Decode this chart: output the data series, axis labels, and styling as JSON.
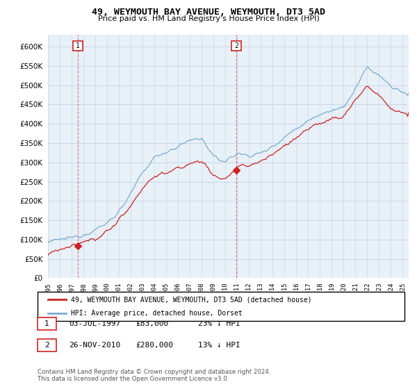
{
  "title": "49, WEYMOUTH BAY AVENUE, WEYMOUTH, DT3 5AD",
  "subtitle": "Price paid vs. HM Land Registry's House Price Index (HPI)",
  "ytick_values": [
    0,
    50000,
    100000,
    150000,
    200000,
    250000,
    300000,
    350000,
    400000,
    450000,
    500000,
    550000,
    600000
  ],
  "ylim": [
    0,
    630000
  ],
  "xlim_start": 1995.0,
  "xlim_end": 2025.5,
  "hpi_color": "#7aadcf",
  "sale_color": "#cc2222",
  "plot_bg_color": "#e8f0f8",
  "marker1_year": 1997.5,
  "marker1_value": 83000,
  "marker1_label": "1",
  "marker1_date": "03-JUL-1997",
  "marker1_price": "£83,000",
  "marker1_hpi": "23% ↓ HPI",
  "marker2_year": 2010.92,
  "marker2_value": 280000,
  "marker2_label": "2",
  "marker2_date": "26-NOV-2010",
  "marker2_price": "£280,000",
  "marker2_hpi": "13% ↓ HPI",
  "legend_line1": "49, WEYMOUTH BAY AVENUE, WEYMOUTH, DT3 5AD (detached house)",
  "legend_line2": "HPI: Average price, detached house, Dorset",
  "footer": "Contains HM Land Registry data © Crown copyright and database right 2024.\nThis data is licensed under the Open Government Licence v3.0.",
  "background_color": "#ffffff",
  "grid_color": "#c8d8e8"
}
